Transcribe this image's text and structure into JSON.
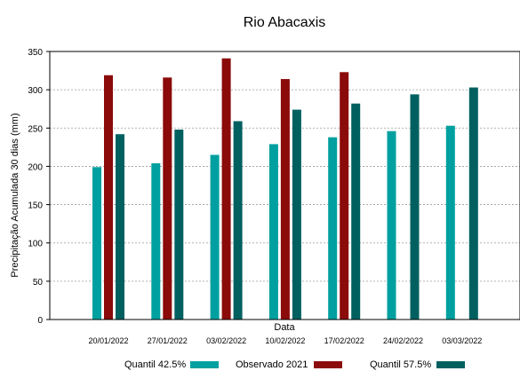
{
  "chart_data": {
    "type": "bar",
    "title": "Rio Abacaxis",
    "xlabel": "Data",
    "ylabel": "Precipitação Acumulada 30 dias (mm)",
    "ylim": [
      0,
      350
    ],
    "yticks": [
      0,
      50,
      100,
      150,
      200,
      250,
      300,
      350
    ],
    "grid": true,
    "legend_position": "bottom",
    "categories": [
      "20/01/2022",
      "27/01/2022",
      "03/02/2022",
      "10/02/2022",
      "17/02/2022",
      "24/02/2022",
      "03/03/2022"
    ],
    "series": [
      {
        "name": "Quantil 42.5%",
        "color": "#00a0a0",
        "values": [
          199,
          204,
          215,
          229,
          238,
          246,
          253
        ]
      },
      {
        "name": "Observado 2021",
        "color": "#8b0a0a",
        "values": [
          319,
          316,
          341,
          314,
          323,
          null,
          null
        ]
      },
      {
        "name": "Quantil 57.5%",
        "color": "#006060",
        "values": [
          242,
          248,
          259,
          274,
          282,
          294,
          303
        ]
      }
    ]
  }
}
